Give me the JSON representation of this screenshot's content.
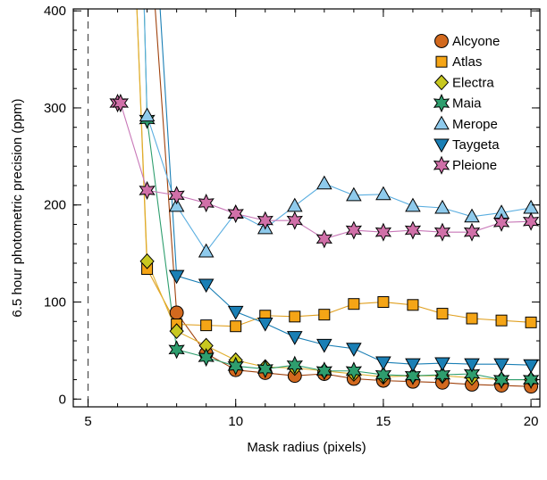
{
  "chart_data": {
    "type": "line",
    "title": "",
    "xlabel": "Mask radius (pixels)",
    "ylabel": "6.5 hour photometric precision (ppm)",
    "xlim": [
      4.5,
      20.3
    ],
    "ylim": [
      -8,
      402
    ],
    "xticks": [
      5,
      10,
      15,
      20
    ],
    "xtick_labels": [
      "5",
      "10",
      "15",
      "20"
    ],
    "yticks": [
      0,
      100,
      200,
      300,
      400
    ],
    "ytick_labels": [
      "0",
      "100",
      "200",
      "300",
      "400"
    ],
    "minor_x_step": 1,
    "minor_y_step": 20,
    "reference_line": {
      "x": 5,
      "style": "dashed",
      "color": "#555555"
    },
    "grid": false,
    "legend_position": "top-right",
    "series": [
      {
        "name": "Alcyone",
        "marker": "circle",
        "color": "#d2691e",
        "line_color": "#a0420d",
        "x": [
          7,
          8,
          9,
          10,
          11,
          12,
          13,
          14,
          15,
          16,
          17,
          18,
          19,
          20
        ],
        "y": [
          520,
          89,
          47,
          30,
          27,
          24,
          26,
          21,
          19,
          18,
          17,
          15,
          14,
          13
        ]
      },
      {
        "name": "Atlas",
        "marker": "square",
        "color": "#f5a516",
        "line_color": "#e0a020",
        "x": [
          6.5,
          7,
          8,
          9,
          10,
          11,
          12,
          13,
          14,
          15,
          16,
          17,
          18,
          19,
          20
        ],
        "y": [
          520,
          134,
          77,
          76,
          75,
          86,
          85,
          87,
          98,
          100,
          97,
          88,
          83,
          81,
          79
        ]
      },
      {
        "name": "Electra",
        "marker": "diamond",
        "color": "#c8c820",
        "line_color": "#e0b030",
        "x": [
          6.5,
          7,
          8,
          9,
          10,
          11,
          12,
          13,
          14,
          15,
          16,
          17,
          18,
          19,
          20
        ],
        "y": [
          520,
          142,
          70,
          55,
          40,
          33,
          32,
          29,
          26,
          23,
          24,
          24,
          22,
          20,
          20
        ]
      },
      {
        "name": "Maia",
        "marker": "star",
        "color": "#2e9e6e",
        "line_color": "#2e9e6e",
        "x": [
          6.8,
          7,
          8,
          9,
          10,
          11,
          12,
          13,
          14,
          15,
          16,
          17,
          18,
          19,
          20
        ],
        "y": [
          520,
          288,
          51,
          43,
          34,
          31,
          35,
          29,
          29,
          25,
          24,
          25,
          26,
          20,
          20
        ]
      },
      {
        "name": "Merope",
        "marker": "triangle-up",
        "color": "#8ecaec",
        "line_color": "#5aaee0",
        "x": [
          6.8,
          7,
          8,
          9,
          10,
          11,
          12,
          13,
          14,
          15,
          16,
          17,
          18,
          19,
          20
        ],
        "y": [
          520,
          292,
          199,
          152,
          192,
          176,
          199,
          222,
          210,
          211,
          199,
          197,
          188,
          192,
          197
        ]
      },
      {
        "name": "Taygeta",
        "marker": "triangle-down",
        "color": "#1a7fb5",
        "line_color": "#1a7fb5",
        "x": [
          7.2,
          8,
          9,
          10,
          11,
          12,
          13,
          14,
          15,
          16,
          17,
          18,
          19,
          20
        ],
        "y": [
          520,
          127,
          118,
          90,
          78,
          64,
          56,
          52,
          38,
          36,
          37,
          36,
          36,
          35
        ]
      },
      {
        "name": "Pleione",
        "marker": "star",
        "color": "#d070a8",
        "line_color": "#c878b8",
        "x": [
          6,
          6.1,
          7,
          8,
          9,
          10,
          11,
          12,
          13,
          14,
          15,
          16,
          17,
          18,
          19,
          20
        ],
        "y": [
          305,
          305,
          215,
          210,
          202,
          191,
          184,
          184,
          165,
          174,
          172,
          174,
          172,
          172,
          182,
          183
        ]
      }
    ]
  }
}
